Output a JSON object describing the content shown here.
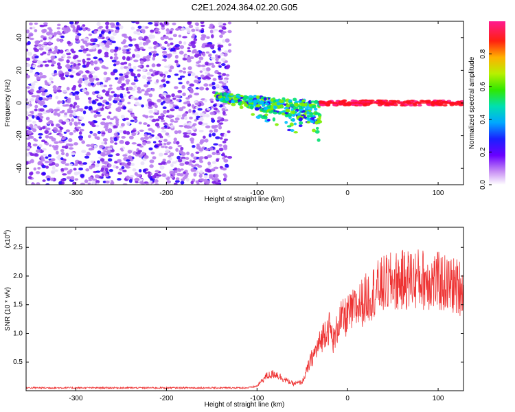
{
  "title": "C2E1.2024.364.02.20.G05",
  "colors": {
    "series": "#ee3333",
    "colormap": [
      "#e9e0fa",
      "#b77bf0",
      "#7c1ee8",
      "#2600ff",
      "#00bfff",
      "#00e070",
      "#80f000",
      "#e8f000",
      "#ff8000",
      "#ff1020",
      "#ff1a88"
    ]
  },
  "chart_data": [
    {
      "type": "heatmap",
      "xlabel": "Height of straight line (km)",
      "ylabel": "Frequency (Hz)",
      "xlim": [
        -355,
        128
      ],
      "ylim": [
        -50,
        50
      ],
      "xticks": [
        -300,
        -200,
        -100,
        0,
        100
      ],
      "yticks": [
        -40,
        -20,
        0,
        20,
        40
      ],
      "grid": false,
      "colorbar": {
        "label": "Normalized spectral amplitude",
        "range": [
          0,
          1
        ],
        "ticks": [
          "0.0",
          "0.2",
          "0.4",
          "0.6",
          "0.8"
        ]
      },
      "regions": [
        {
          "x": [
            -355,
            -130
          ],
          "y": [
            -50,
            50
          ],
          "amplitude": [
            0.05,
            0.3
          ],
          "note": "broad diffuse noise"
        },
        {
          "x": [
            -145,
            -30
          ],
          "y": [
            -30,
            10
          ],
          "amplitude": [
            0.3,
            0.65
          ],
          "note": "sloping band"
        },
        {
          "x": [
            -30,
            128
          ],
          "y": [
            -2,
            2
          ],
          "amplitude": [
            0.85,
            1.0
          ],
          "note": "narrow line at 0 Hz"
        }
      ]
    },
    {
      "type": "line",
      "xlabel": "Height of straight line (km)",
      "ylabel": "SNR (10 * v/v)",
      "yscale_label": "(x10",
      "yscale_exp": "4",
      "xlim": [
        -355,
        128
      ],
      "ylim": [
        0,
        2.85
      ],
      "xticks": [
        -300,
        -200,
        -100,
        0,
        100
      ],
      "yticks": [
        "0.5",
        "1.0",
        "1.5",
        "2.0",
        "2.5"
      ],
      "series": [
        {
          "x": [
            -355,
            -300,
            -200,
            -110,
            -100,
            -90,
            -80,
            -70,
            -60,
            -50,
            -40,
            -30,
            -25,
            -20,
            -15,
            -10,
            0,
            10,
            20,
            30,
            40,
            50,
            60,
            70,
            80,
            90,
            100,
            110,
            120,
            128
          ],
          "y": [
            0.05,
            0.05,
            0.05,
            0.05,
            0.08,
            0.25,
            0.3,
            0.2,
            0.12,
            0.15,
            0.55,
            0.85,
            1.05,
            1.1,
            0.85,
            1.2,
            1.3,
            1.45,
            1.6,
            1.75,
            1.85,
            1.9,
            1.92,
            1.95,
            1.95,
            1.93,
            1.9,
            1.85,
            1.82,
            1.8
          ]
        }
      ]
    }
  ]
}
